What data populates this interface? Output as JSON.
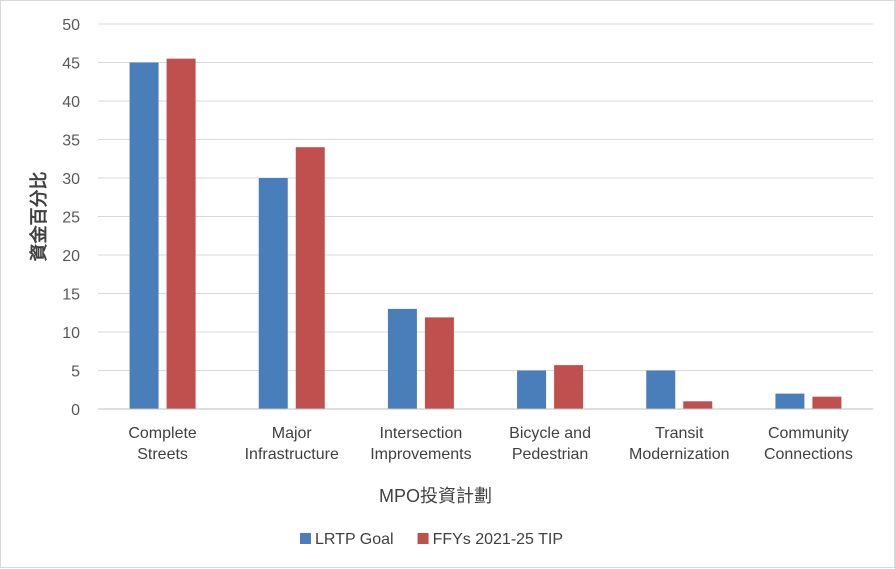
{
  "chart_data": {
    "type": "bar",
    "categories": [
      [
        "Complete",
        "Streets"
      ],
      [
        "Major",
        "Infrastructure"
      ],
      [
        "Intersection",
        "Improvements"
      ],
      [
        "Bicycle and",
        "Pedestrian"
      ],
      [
        "Transit",
        "Modernization"
      ],
      [
        "Community",
        "Connections"
      ]
    ],
    "series": [
      {
        "name": "LRTP Goal",
        "color": "#4a7ebb",
        "values": [
          45,
          30,
          13,
          5,
          5,
          2
        ]
      },
      {
        "name": "FFYs 2021-25 TIP",
        "color": "#c0504d",
        "values": [
          45.5,
          34,
          11.9,
          5.7,
          1,
          1.6
        ]
      }
    ],
    "xlabel": "MPO投資計劃",
    "ylabel": "資金百分比",
    "ylim": [
      0,
      50
    ],
    "yticks": [
      0,
      5,
      10,
      15,
      20,
      25,
      30,
      35,
      40,
      45,
      50
    ],
    "grid": true,
    "legend_position": "bottom"
  }
}
